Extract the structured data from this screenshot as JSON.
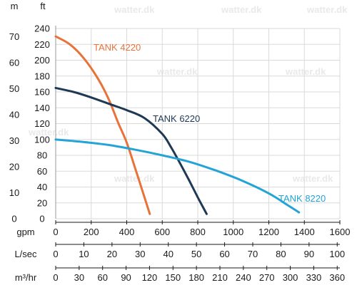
{
  "watermark": "watter.dk",
  "chart_data": {
    "type": "line",
    "x_unit": "gpm",
    "y_unit": "ft",
    "y_secondary_unit": "m",
    "xlim": [
      0,
      1600
    ],
    "ylim": [
      0,
      240
    ],
    "grid": true,
    "x_ticks": [
      0,
      200,
      400,
      600,
      800,
      1000,
      1200,
      1400,
      1600
    ],
    "y_ticks_ft": [
      0,
      20,
      40,
      60,
      80,
      100,
      120,
      140,
      160,
      180,
      200,
      220,
      240
    ],
    "y_ticks_m": [
      0,
      10,
      20,
      30,
      40,
      50,
      60,
      70
    ],
    "secondary_axes": [
      {
        "unit": "L/sec",
        "ticks": [
          0,
          10,
          20,
          30,
          40,
          50,
          60,
          70,
          80,
          90,
          100
        ]
      },
      {
        "unit": "m³/hr",
        "ticks": [
          0,
          30,
          60,
          90,
          120,
          150,
          180,
          210,
          240,
          270,
          300,
          330,
          360
        ]
      }
    ],
    "series": [
      {
        "name": "TANK 4220",
        "color": "#e8733a",
        "x": [
          0,
          80,
          160,
          240,
          300,
          350,
          400,
          450,
          500,
          530
        ],
        "y": [
          230,
          220,
          202,
          176,
          150,
          122,
          96,
          62,
          27,
          6
        ]
      },
      {
        "name": "TANK 6220",
        "color": "#1e3955",
        "x": [
          0,
          100,
          200,
          300,
          400,
          500,
          600,
          650,
          700,
          750,
          800,
          850
        ],
        "y": [
          165,
          160,
          153,
          145,
          137,
          127,
          107,
          90,
          70,
          49,
          27,
          6
        ]
      },
      {
        "name": "TANK 8220",
        "color": "#23a3d6",
        "x": [
          0,
          150,
          300,
          450,
          600,
          750,
          900,
          1050,
          1200,
          1300,
          1370
        ],
        "y": [
          100,
          97,
          93,
          87,
          80,
          72,
          61,
          48,
          32,
          18,
          8
        ]
      }
    ]
  }
}
